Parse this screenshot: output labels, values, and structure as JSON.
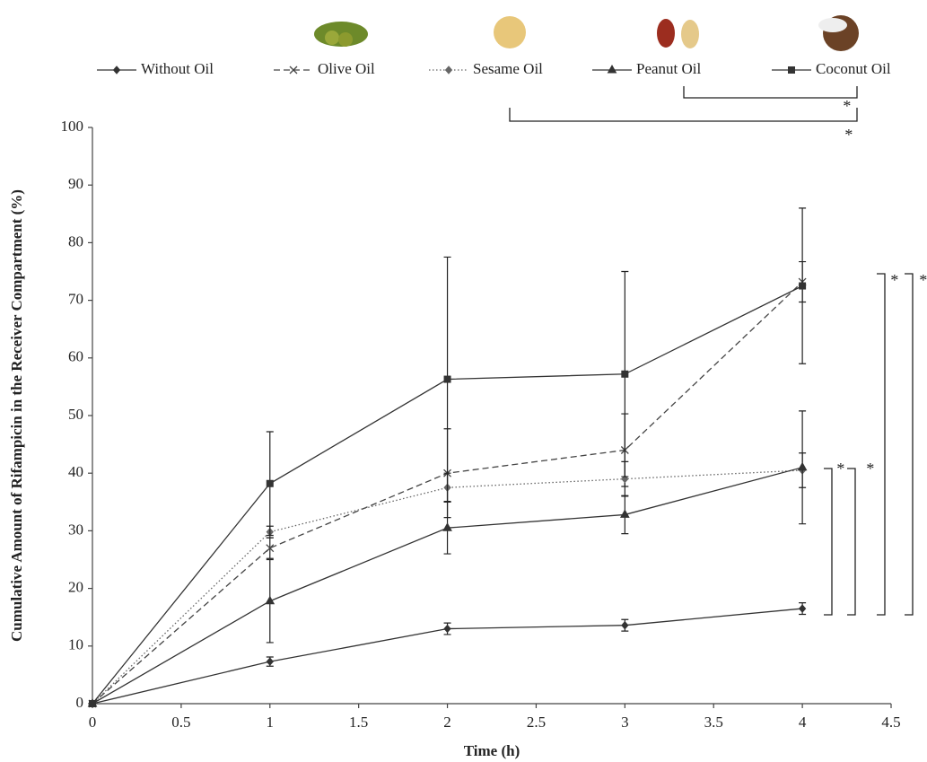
{
  "chart_data": {
    "type": "line",
    "x_label": "Time (h)",
    "y_label": "Cumulative Amount of Rifampicin in the Receiver Compartment (%)",
    "x": [
      0,
      1,
      2,
      3,
      4
    ],
    "xlim": [
      0,
      4.5
    ],
    "xticks": [
      0,
      0.5,
      1,
      1.5,
      2,
      2.5,
      3,
      3.5,
      4,
      4.5
    ],
    "ylim": [
      0,
      100
    ],
    "yticks": [
      0,
      10,
      20,
      30,
      40,
      50,
      60,
      70,
      80,
      90,
      100
    ],
    "series": [
      {
        "name": "Without Oil",
        "color": "#333333",
        "line_style": "solid",
        "marker": "diamond",
        "values": [
          0,
          7.3,
          13,
          13.6,
          16.5
        ],
        "errors": [
          0.5,
          0.8,
          1,
          1,
          1
        ]
      },
      {
        "name": "Olive Oil",
        "color": "#444444",
        "line_style": "dashed",
        "marker": "x",
        "values": [
          0,
          27,
          40,
          44,
          73.2
        ],
        "errors": [
          0.5,
          1.8,
          7.7,
          6.3,
          3.5
        ]
      },
      {
        "name": "Sesame Oil",
        "color": "#666666",
        "line_style": "dotted",
        "marker": "diamond",
        "values": [
          0,
          29.8,
          37.5,
          39,
          40.5
        ],
        "errors": [
          0.5,
          1,
          2.5,
          3,
          3
        ]
      },
      {
        "name": "Peanut Oil",
        "color": "#333333",
        "line_style": "solid",
        "marker": "triangle",
        "values": [
          0,
          17.8,
          30.5,
          32.8,
          41
        ],
        "errors": [
          0.5,
          7.2,
          4.5,
          3.3,
          9.8
        ]
      },
      {
        "name": "Coconut Oil",
        "color": "#333333",
        "line_style": "solid",
        "marker": "square",
        "values": [
          0,
          38.2,
          56.3,
          57.2,
          72.5
        ],
        "errors": [
          0.5,
          9,
          21.2,
          17.8,
          13.5
        ]
      }
    ],
    "annotations": [
      "*",
      "*",
      "*",
      "*",
      "*",
      "*"
    ]
  }
}
